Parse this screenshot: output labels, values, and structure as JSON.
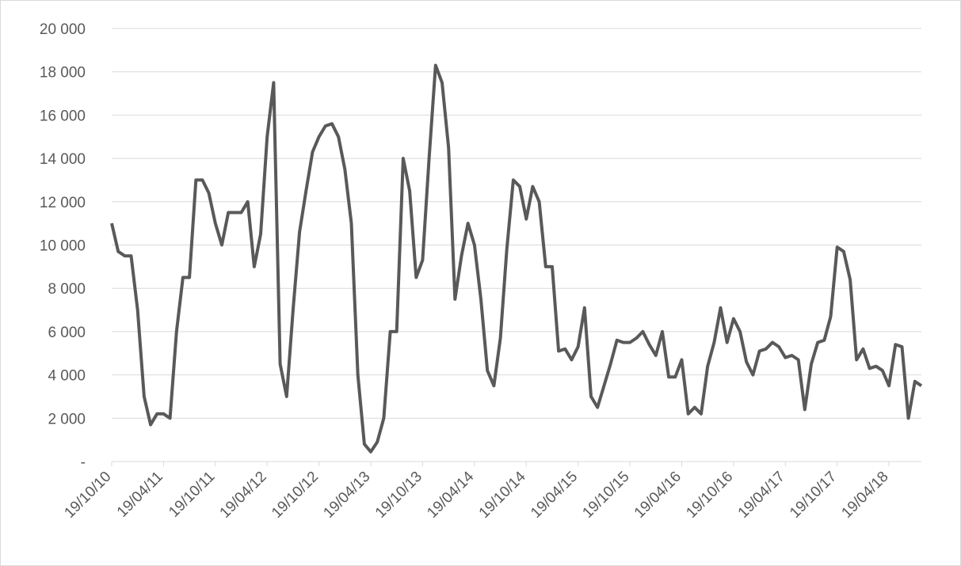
{
  "chart_data": {
    "type": "line",
    "categories": [
      "19/10/10",
      null,
      null,
      null,
      null,
      null,
      null,
      null,
      "19/04/11",
      null,
      null,
      null,
      null,
      null,
      null,
      null,
      "19/10/11",
      null,
      null,
      null,
      null,
      null,
      null,
      null,
      "19/04/12",
      null,
      null,
      null,
      null,
      null,
      null,
      null,
      "19/10/12",
      null,
      null,
      null,
      null,
      null,
      null,
      null,
      "19/04/13",
      null,
      null,
      null,
      null,
      null,
      null,
      null,
      "19/10/13",
      null,
      null,
      null,
      null,
      null,
      null,
      null,
      "19/04/14",
      null,
      null,
      null,
      null,
      null,
      null,
      null,
      "19/10/14",
      null,
      null,
      null,
      null,
      null,
      null,
      null,
      "19/04/15",
      null,
      null,
      null,
      null,
      null,
      null,
      null,
      "19/10/15",
      null,
      null,
      null,
      null,
      null,
      null,
      null,
      "19/04/16",
      null,
      null,
      null,
      null,
      null,
      null,
      null,
      "19/10/16",
      null,
      null,
      null,
      null,
      null,
      null,
      null,
      "19/04/17",
      null,
      null,
      null,
      null,
      null,
      null,
      null,
      "19/10/17",
      null,
      null,
      null,
      null,
      null,
      null,
      null,
      "19/04/18",
      null,
      null,
      null,
      null,
      null
    ],
    "series": [
      {
        "color": "#595959",
        "values": [
          11000,
          9700,
          9500,
          9500,
          7000,
          3000,
          1700,
          2200,
          2200,
          2000,
          6000,
          8500,
          8500,
          13000,
          13000,
          12400,
          11000,
          10000,
          11500,
          11500,
          11500,
          12000,
          9000,
          10500,
          15000,
          17500,
          4500,
          3000,
          7000,
          10600,
          12500,
          14300,
          15000,
          15500,
          15600,
          15000,
          13500,
          11000,
          4000,
          800,
          450,
          900,
          2000,
          6000,
          6000,
          14000,
          12500,
          8500,
          9300,
          14000,
          18300,
          17500,
          14500,
          7500,
          9500,
          11000,
          10000,
          7500,
          4200,
          3500,
          5700,
          9800,
          13000,
          12700,
          11200,
          12700,
          12000,
          9000,
          9000,
          5100,
          5200,
          4700,
          5300,
          7100,
          3000,
          2500,
          3500,
          4500,
          5600,
          5500,
          5500,
          5700,
          6000,
          5400,
          4900,
          6000,
          3900,
          3900,
          4700,
          2200,
          2500,
          2200,
          4400,
          5500,
          7100,
          5500,
          6600,
          6000,
          4600,
          4000,
          5100,
          5200,
          5500,
          5300,
          4800,
          4900,
          4700,
          2400,
          4500,
          5500,
          5600,
          6700,
          9900,
          9700,
          8400,
          4700,
          5200,
          4300,
          4400,
          4200,
          3500,
          5400,
          5300,
          2000,
          3700,
          3500
        ]
      }
    ],
    "ylim": [
      0,
      20000
    ],
    "yticks": [
      {
        "value": 0,
        "label": "-"
      },
      {
        "value": 2000,
        "label": "2 000"
      },
      {
        "value": 4000,
        "label": "4 000"
      },
      {
        "value": 6000,
        "label": "6 000"
      },
      {
        "value": 8000,
        "label": "8 000"
      },
      {
        "value": 10000,
        "label": "10 000"
      },
      {
        "value": 12000,
        "label": "12 000"
      },
      {
        "value": 14000,
        "label": "14 000"
      },
      {
        "value": 16000,
        "label": "16 000"
      },
      {
        "value": 18000,
        "label": "18 000"
      },
      {
        "value": 20000,
        "label": "20 000"
      }
    ],
    "grid": true
  }
}
